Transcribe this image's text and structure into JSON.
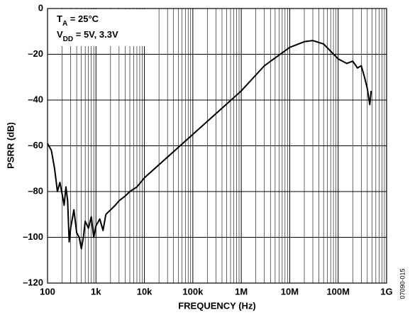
{
  "chart_data": {
    "type": "line",
    "x_scale": "log",
    "grid": true,
    "minor_grid": true,
    "color": "#000000",
    "xlabel": "FREQUENCY (Hz)",
    "ylabel": "PSRR (dB)",
    "side_note": "07090-015",
    "annotations": [
      [
        "T",
        "A",
        " = 25°C"
      ],
      [
        "V",
        "DD",
        " = 5V, 3.3V"
      ]
    ],
    "xlim": [
      100,
      1000000000
    ],
    "ylim": [
      -120,
      0
    ],
    "xticks": [
      100,
      {
        "value": 1000,
        "label": "1k"
      },
      {
        "value": 10000,
        "label": "10k"
      },
      {
        "value": 100000,
        "label": "100k"
      },
      {
        "value": 1000000,
        "label": "1M"
      },
      {
        "value": 10000000,
        "label": "10M"
      },
      {
        "value": 100000000,
        "label": "100M"
      },
      {
        "value": 1000000000,
        "label": "1G"
      }
    ],
    "yticks": [
      0,
      {
        "value": -20,
        "label": "–20"
      },
      {
        "value": -40,
        "label": "–40"
      },
      {
        "value": -60,
        "label": "–60"
      },
      {
        "value": -80,
        "label": "–80"
      },
      {
        "value": -100,
        "label": "–100"
      },
      {
        "value": -120,
        "label": "–120"
      }
    ],
    "x": [
      100,
      120,
      140,
      160,
      180,
      200,
      220,
      240,
      260,
      280,
      300,
      350,
      400,
      450,
      500,
      550,
      600,
      700,
      800,
      900,
      1000,
      1200,
      1400,
      1600,
      2000,
      2500,
      3000,
      4000,
      5000,
      7000,
      10000,
      100000,
      1000000,
      3000000,
      10000000,
      20000000,
      30000000,
      50000000,
      100000000,
      150000000,
      200000000,
      250000000,
      300000000,
      350000000,
      400000000,
      450000000,
      480000000
    ],
    "values": [
      -59,
      -62,
      -70,
      -80,
      -76,
      -81,
      -86,
      -78,
      -84,
      -102,
      -96,
      -88,
      -98,
      -100,
      -105,
      -100,
      -93,
      -96,
      -91,
      -100,
      -95,
      -92,
      -97,
      -90,
      -88,
      -86,
      -84,
      -82,
      -80,
      -78,
      -74,
      -55,
      -36,
      -25,
      -17,
      -14.5,
      -14,
      -15.5,
      -22,
      -24,
      -23,
      -26,
      -25,
      -30,
      -35,
      -42,
      -36
    ]
  }
}
